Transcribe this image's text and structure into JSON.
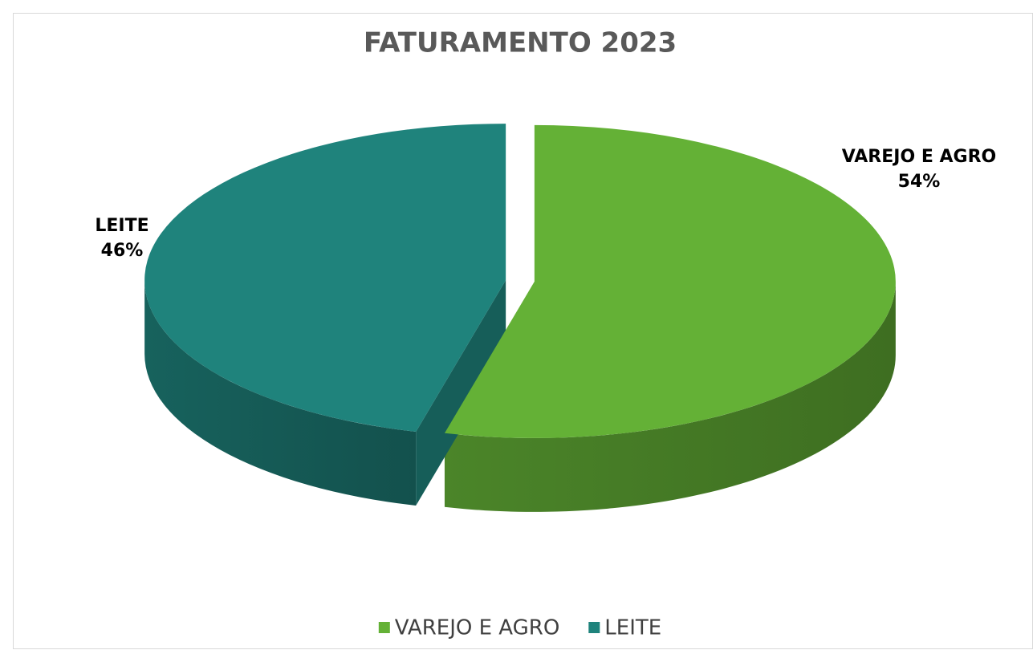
{
  "chart_data": {
    "type": "pie",
    "title": "FATURAMENTO 2023",
    "categories": [
      "VAREJO E AGRO",
      "LEITE"
    ],
    "values": [
      54,
      46
    ],
    "value_labels": [
      "54%",
      "46%"
    ],
    "colors": [
      "#64b136",
      "#1f837c"
    ],
    "legend": "bottom"
  }
}
